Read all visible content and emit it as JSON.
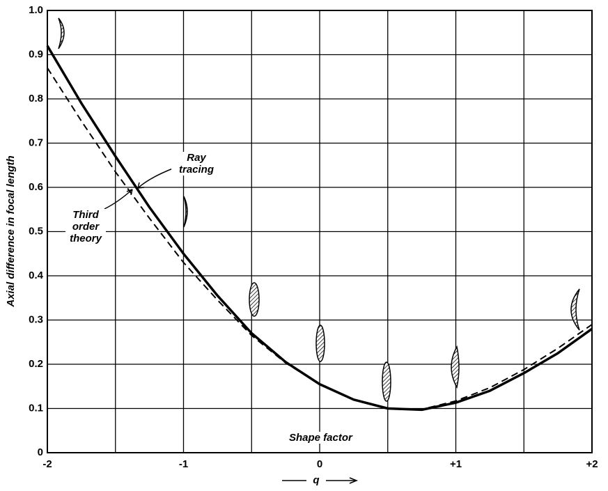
{
  "chart_data": {
    "type": "line",
    "ylabel": "Axial difference in focal length",
    "xlabel": "q",
    "annotation": "Shape factor",
    "x": [
      -2,
      -1.75,
      -1.5,
      -1.25,
      -1,
      -0.75,
      -0.5,
      -0.25,
      0,
      0.25,
      0.5,
      0.75,
      1,
      1.25,
      1.5,
      1.75,
      2
    ],
    "series": [
      {
        "name": "Ray tracing",
        "color": "#000000",
        "dash": false,
        "values": [
          0.92,
          0.79,
          0.67,
          0.555,
          0.45,
          0.355,
          0.27,
          0.205,
          0.155,
          0.12,
          0.1,
          0.097,
          0.113,
          0.14,
          0.18,
          0.225,
          0.28
        ]
      },
      {
        "name": "Third order theory",
        "color": "#000000",
        "dash": true,
        "values": [
          0.87,
          0.75,
          0.635,
          0.53,
          0.43,
          0.345,
          0.265,
          0.203,
          0.155,
          0.12,
          0.1,
          0.098,
          0.117,
          0.147,
          0.188,
          0.236,
          0.29
        ]
      }
    ],
    "xlim": [
      -2,
      2
    ],
    "ylim": [
      0,
      1
    ],
    "xticks": [
      -2,
      -1,
      0,
      {
        "value": 1,
        "label": "+1"
      },
      {
        "value": 2,
        "label": "+2"
      }
    ],
    "xminor": [
      -1.5,
      -0.5,
      0.5,
      1.5
    ],
    "yticks": [
      {
        "value": 0,
        "label": "0"
      },
      0.1,
      0.2,
      0.3,
      0.4,
      0.5,
      0.6,
      0.7,
      0.8,
      0.9,
      {
        "value": 1,
        "label": "1.0"
      }
    ],
    "grid": true
  }
}
